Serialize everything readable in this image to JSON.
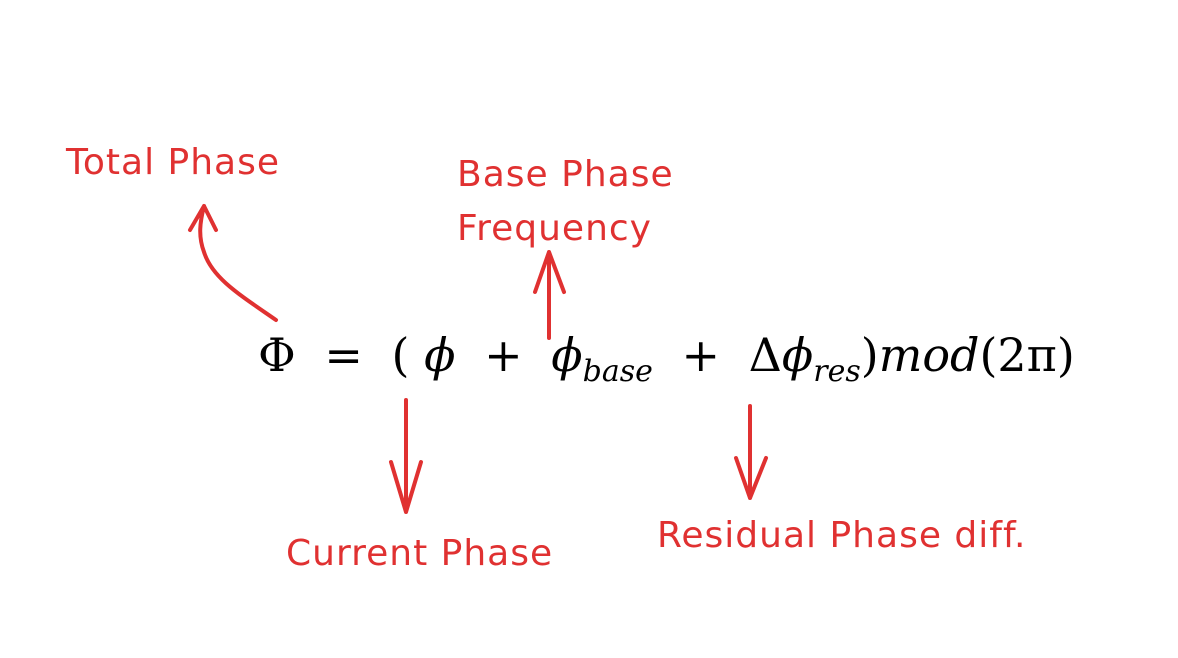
{
  "colors": {
    "annotation": "#e03131",
    "equation": "#000000",
    "background": "#ffffff"
  },
  "annotations": {
    "total_phase": "Total Phase",
    "base_phase_line1": "Base Phase",
    "base_phase_line2": "Frequency",
    "current_phase": "Current Phase",
    "residual_phase": "Residual Phase diff."
  },
  "equation": {
    "lhs": "Φ",
    "eq": "=",
    "open_paren": "(",
    "phi": "ϕ",
    "plus1": "+",
    "phi_base": "ϕ",
    "sub_base": "base",
    "plus2": "+",
    "delta": "Δ",
    "phi_res": "ϕ",
    "sub_res": "res",
    "close_paren": ")",
    "mod": "mod",
    "mod_arg": "(2π)"
  }
}
